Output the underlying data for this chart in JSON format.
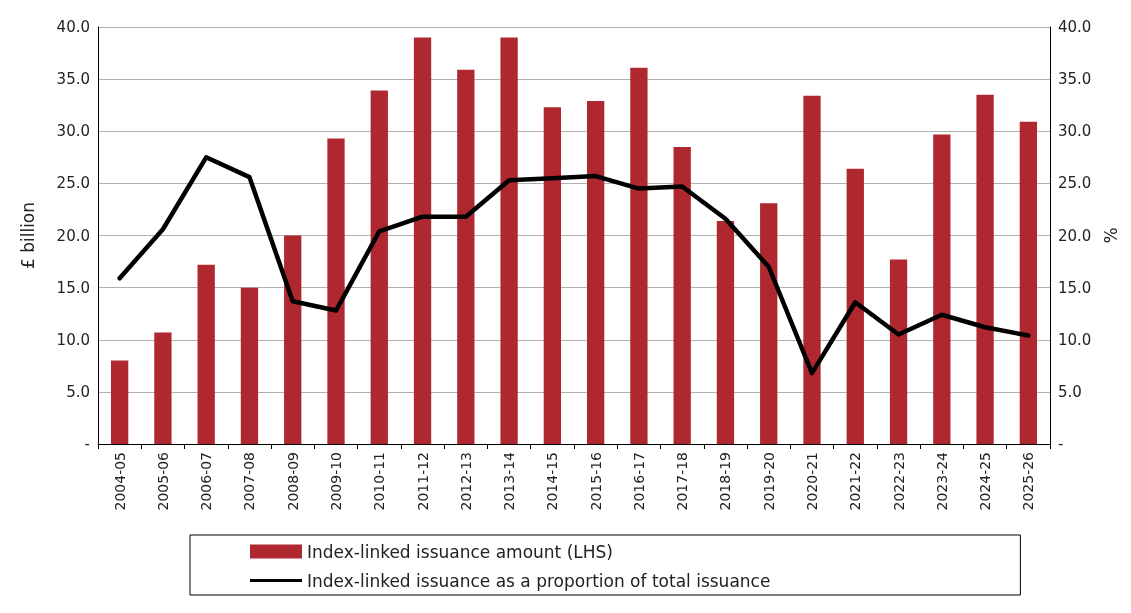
{
  "chart_data": {
    "type": "bar",
    "ylabel": "£ billion",
    "y2label": "%",
    "categories": [
      "2004-05",
      "2005-06",
      "2006-07",
      "2007-08",
      "2008-09",
      "2009-10",
      "2010-11",
      "2011-12",
      "2012-13",
      "2013-14",
      "2014-15",
      "2015-16",
      "2016-17",
      "2017-18",
      "2018-19",
      "2019-20",
      "2020-21",
      "2021-22",
      "2022-23",
      "2023-24",
      "2024-25",
      "2025-26"
    ],
    "series": [
      {
        "name": "Index-linked issuance amount (LHS)",
        "color": "#b0282f",
        "values": [
          8.0,
          10.7,
          17.2,
          15.0,
          20.0,
          29.3,
          33.9,
          39.0,
          35.9,
          39.0,
          32.3,
          32.9,
          36.1,
          28.5,
          21.4,
          23.1,
          33.4,
          26.4,
          17.7,
          29.7,
          33.5,
          30.9
        ]
      },
      {
        "name": "Index-linked issuance as a proportion of total issuance",
        "type": "line",
        "axis": "y2",
        "color": "#000000",
        "values": [
          15.9,
          20.6,
          27.5,
          25.6,
          13.7,
          12.8,
          20.4,
          21.8,
          21.8,
          25.3,
          25.5,
          25.7,
          24.5,
          24.7,
          21.6,
          17.0,
          6.8,
          13.6,
          10.5,
          12.4,
          11.2,
          10.4
        ]
      }
    ],
    "ylim": [
      0,
      40
    ],
    "yticks": [
      {
        "value": 0,
        "label": "-"
      },
      {
        "value": 5,
        "label": "5.0"
      },
      {
        "value": 10,
        "label": "10.0"
      },
      {
        "value": 15,
        "label": "15.0"
      },
      {
        "value": 20,
        "label": "20.0"
      },
      {
        "value": 25,
        "label": "25.0"
      },
      {
        "value": 30,
        "label": "30.0"
      },
      {
        "value": 35,
        "label": "35.0"
      },
      {
        "value": 40,
        "label": "40.0"
      }
    ],
    "y2lim": [
      0,
      40
    ],
    "y2ticks": [
      {
        "value": 0,
        "label": "-"
      },
      {
        "value": 5,
        "label": "5.0"
      },
      {
        "value": 10,
        "label": "10.0"
      },
      {
        "value": 15,
        "label": "15.0"
      },
      {
        "value": 20,
        "label": "20.0"
      },
      {
        "value": 25,
        "label": "25.0"
      },
      {
        "value": 30,
        "label": "30.0"
      },
      {
        "value": 35,
        "label": "35.0"
      },
      {
        "value": 40,
        "label": "40.0"
      }
    ],
    "grid": "y",
    "legend": "bottom",
    "marker": "none",
    "line_style": "solid"
  }
}
